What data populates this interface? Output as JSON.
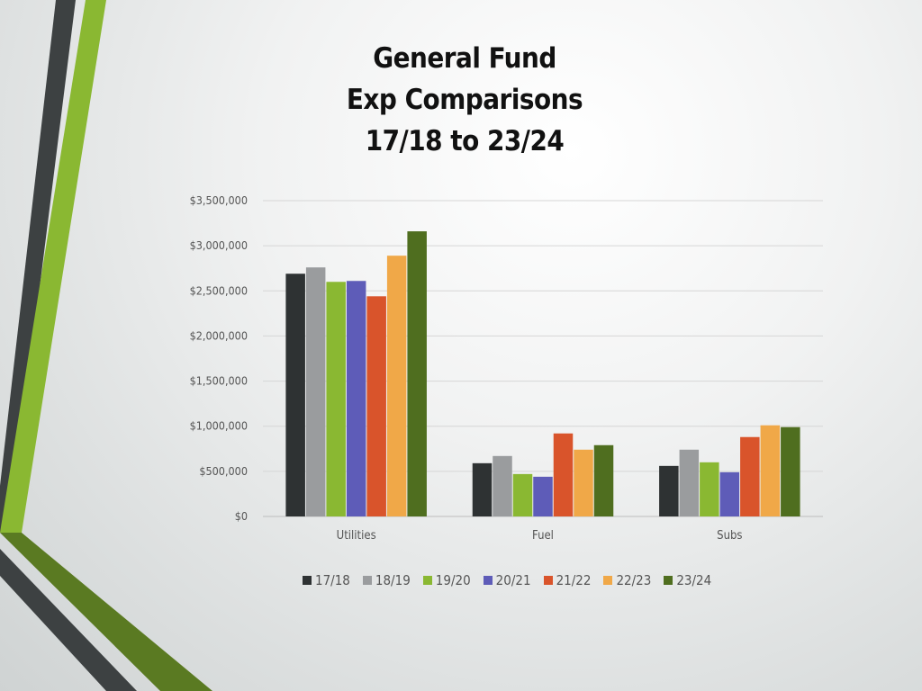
{
  "title": {
    "line1": "General Fund",
    "line2": "Exp Comparisons",
    "line3": "17/18 to 23/24"
  },
  "chart_data": {
    "type": "bar",
    "categories": [
      "Utilities",
      "Fuel",
      "Subs"
    ],
    "ylim": [
      0,
      3500000
    ],
    "yticks": [
      "$0",
      "$500,000",
      "$1,000,000",
      "$1,500,000",
      "$2,000,000",
      "$2,500,000",
      "$3,000,000",
      "$3,500,000"
    ],
    "grid": true,
    "legend_position": "bottom",
    "series": [
      {
        "name": "17/18",
        "color": "#2e3233",
        "values": [
          2690000,
          590000,
          560000
        ]
      },
      {
        "name": "18/19",
        "color": "#9a9c9e",
        "values": [
          2760000,
          670000,
          740000
        ]
      },
      {
        "name": "19/20",
        "color": "#8ab832",
        "values": [
          2600000,
          470000,
          600000
        ]
      },
      {
        "name": "20/21",
        "color": "#5e5cb8",
        "values": [
          2610000,
          440000,
          490000
        ]
      },
      {
        "name": "21/22",
        "color": "#d9542b",
        "values": [
          2440000,
          920000,
          880000
        ]
      },
      {
        "name": "22/23",
        "color": "#f0a848",
        "values": [
          2890000,
          740000,
          1010000
        ]
      },
      {
        "name": "23/24",
        "color": "#4f6e1f",
        "values": [
          3160000,
          790000,
          990000
        ]
      }
    ]
  }
}
